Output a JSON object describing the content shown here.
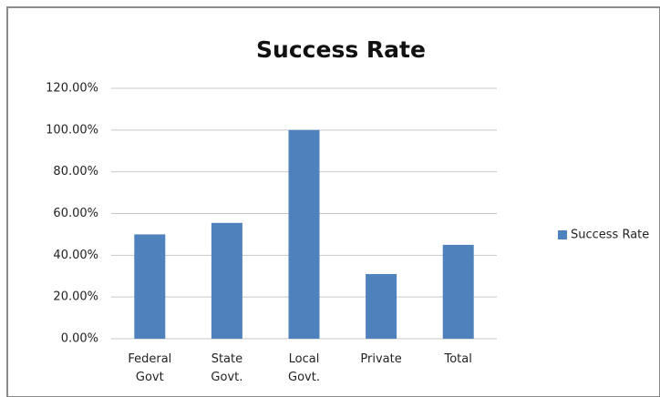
{
  "chart_data": {
    "type": "bar",
    "title": "Success Rate",
    "categories": [
      "Federal Govt",
      "State Govt.",
      "Local Govt.",
      "Private",
      "Total"
    ],
    "series": [
      {
        "name": "Success Rate",
        "color": "#4f81bd",
        "values": [
          50,
          55.5,
          100,
          31,
          45
        ]
      }
    ],
    "ylim": [
      0,
      120
    ],
    "yticks": [
      {
        "value": 0,
        "label": "0.00%"
      },
      {
        "value": 20,
        "label": "20.00%"
      },
      {
        "value": 40,
        "label": "40.00%"
      },
      {
        "value": 60,
        "label": "60.00%"
      },
      {
        "value": 80,
        "label": "80.00%"
      },
      {
        "value": 100,
        "label": "100.00%"
      },
      {
        "value": 120,
        "label": "120.00%"
      }
    ],
    "grid": true,
    "legend": "right"
  }
}
